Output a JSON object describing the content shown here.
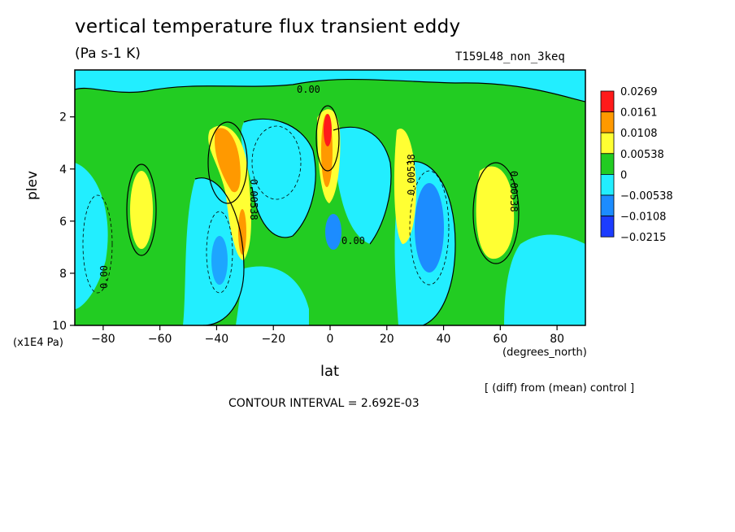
{
  "title": "vertical temperature flux transient eddy",
  "units": "(Pa s-1 K)",
  "run_label": "T159L48_non_3keq",
  "note": "[ (diff) from (mean) control ]",
  "contour_interval": "CONTOUR INTERVAL = 2.692E-03",
  "chart_data": {
    "type": "heatmap",
    "xlabel": "lat",
    "x_unit": "(degrees_north)",
    "ylabel": "plev",
    "y_unit": "(x1E4 Pa)",
    "xlim": [
      -90,
      90
    ],
    "ylim": [
      10,
      0.2
    ],
    "x_ticks": [
      "-80",
      "-60",
      "-40",
      "-20",
      "0",
      "20",
      "40",
      "60",
      "80"
    ],
    "y_ticks": [
      "2",
      "4",
      "6",
      "8",
      "10"
    ],
    "colorbar": {
      "levels": [
        "0.0269",
        "0.0161",
        "0.0108",
        "0.00538",
        "0",
        "-0.00538",
        "-0.0108",
        "-0.0215"
      ],
      "colors": [
        "#ff1a1a",
        "#ff9900",
        "#ffff33",
        "#22cc22",
        "#22eeff",
        "#1c8cff",
        "#1c3cff"
      ]
    },
    "background_value_color": "#22cc22",
    "features": [
      {
        "lat": 0,
        "plev": 2.5,
        "value": 0.0269,
        "color": "#ff1a1a"
      },
      {
        "lat": 0,
        "plev": 3.5,
        "value": 0.0161,
        "color": "#ff9900"
      },
      {
        "lat": -37,
        "plev": 3.5,
        "value": 0.0161,
        "color": "#ff9900"
      },
      {
        "lat": -66,
        "plev": 5.5,
        "value": 0.0108,
        "color": "#ffff33"
      },
      {
        "lat": 26,
        "plev": 5.0,
        "value": 0.0108,
        "color": "#ffff33"
      },
      {
        "lat": 58,
        "plev": 5.5,
        "value": 0.0108,
        "color": "#ffff33"
      },
      {
        "lat": 36,
        "plev": 6.5,
        "value": -0.0108,
        "color": "#1c8cff"
      },
      {
        "lat": 2,
        "plev": 6.5,
        "value": -0.0108,
        "color": "#1c8cff"
      },
      {
        "lat": -36,
        "plev": 7.5,
        "value": -0.00538,
        "color": "#22eeff"
      },
      {
        "lat": -20,
        "plev": 3.0,
        "value": -0.00538,
        "color": "#22eeff"
      },
      {
        "lat": 10,
        "plev": 2.5,
        "value": -0.00538,
        "color": "#22eeff"
      }
    ],
    "contour_labels": [
      "0.00",
      "0.00538"
    ]
  }
}
